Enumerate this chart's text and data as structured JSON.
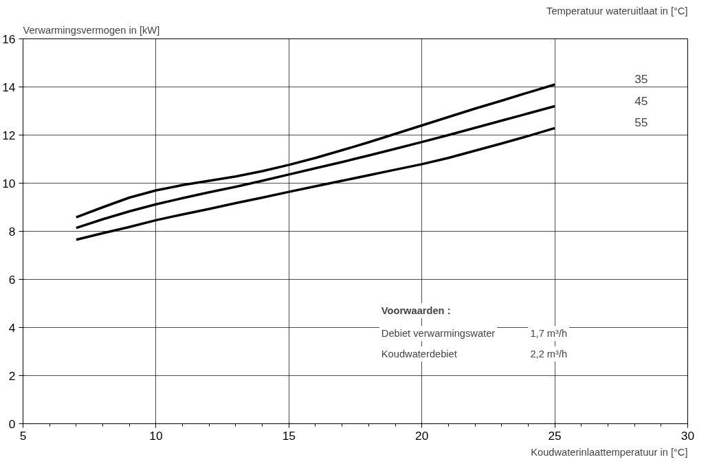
{
  "chart_data": {
    "type": "line",
    "ylabel": "Verwarmingsvermogen in [kW]",
    "legend_title": "Temperatuur wateruitlaat in [°C]",
    "xlabel": "Koudwaterinlaattemperatuur in [°C]",
    "x": [
      7,
      8,
      9,
      10,
      11,
      12,
      13,
      14,
      15,
      16,
      17,
      18,
      19,
      20,
      21,
      22,
      23,
      24,
      25
    ],
    "series": [
      {
        "name": "35",
        "color": "#000000",
        "values": [
          8.58,
          9.0,
          9.4,
          9.7,
          9.92,
          10.1,
          10.28,
          10.5,
          10.76,
          11.05,
          11.37,
          11.7,
          12.05,
          12.4,
          12.75,
          13.1,
          13.43,
          13.77,
          14.1
        ]
      },
      {
        "name": "45",
        "color": "#000000",
        "values": [
          8.14,
          8.5,
          8.83,
          9.12,
          9.38,
          9.62,
          9.85,
          10.1,
          10.36,
          10.62,
          10.88,
          11.15,
          11.43,
          11.71,
          12.0,
          12.3,
          12.6,
          12.9,
          13.2
        ]
      },
      {
        "name": "55",
        "color": "#000000",
        "values": [
          7.65,
          7.92,
          8.18,
          8.46,
          8.7,
          8.93,
          9.17,
          9.4,
          9.64,
          9.87,
          10.1,
          10.33,
          10.56,
          10.79,
          11.05,
          11.35,
          11.65,
          11.96,
          12.29
        ]
      }
    ],
    "xlim": [
      5,
      30
    ],
    "xticks": [
      5,
      10,
      15,
      20,
      25,
      30
    ],
    "ylim": [
      0,
      16
    ],
    "yticks": [
      0,
      2,
      4,
      6,
      8,
      10,
      12,
      14,
      16
    ],
    "grid": true,
    "line_style": "solid",
    "marker": "none",
    "annotations": [
      "Voorwaarden :",
      "Debiet verwarmingswater",
      "1,7 m³/h",
      "Koudwaterdebiet",
      "2,2 m³/h"
    ]
  }
}
